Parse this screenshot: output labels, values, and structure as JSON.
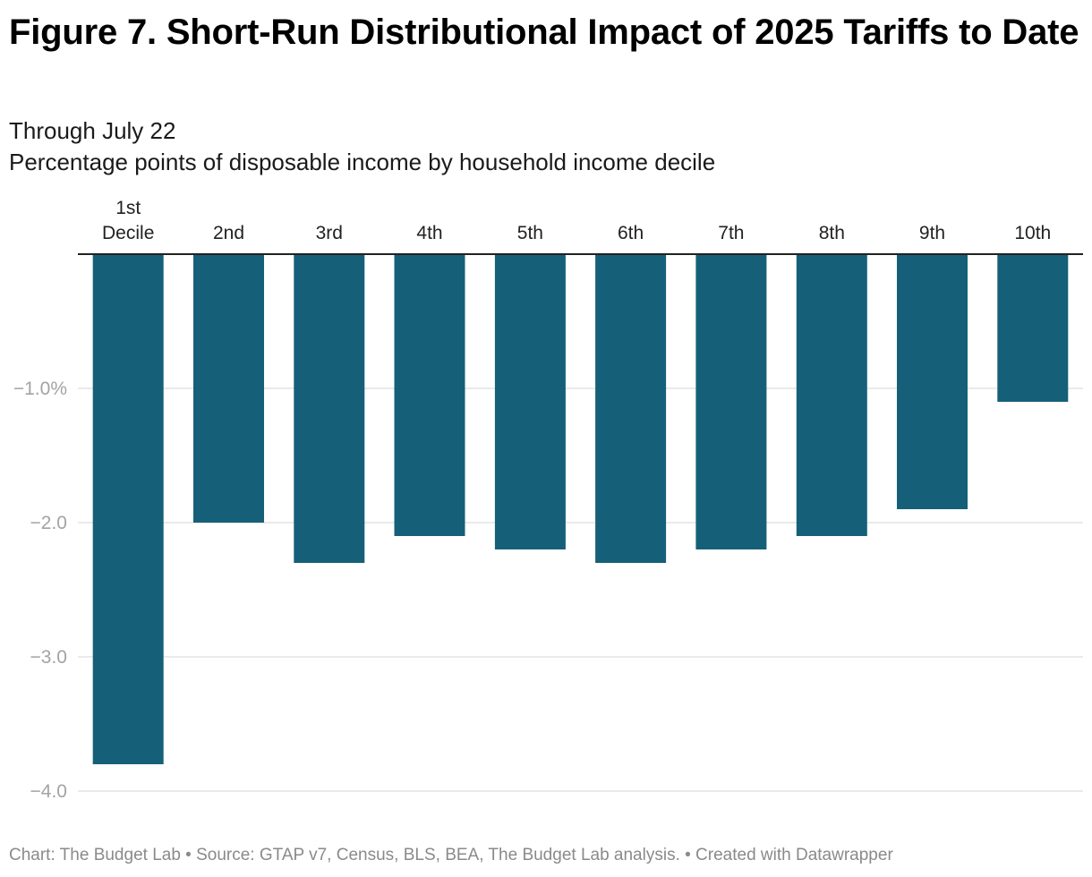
{
  "header": {
    "title": "Figure 7. Short-Run Distributional Impact of 2025 Tariffs to Date",
    "subtitle_line1": "Through July 22",
    "subtitle_line2": "Percentage points of disposable income by household income decile"
  },
  "footer": {
    "text": "Chart: The Budget Lab • Source: GTAP v7, Census, BLS, BEA, The Budget Lab analysis. • Created with Datawrapper"
  },
  "colors": {
    "bar": "#156078",
    "gridline": "#e3e3e3",
    "baseline": "#222222"
  },
  "chart_data": {
    "type": "bar",
    "orientation": "vertical",
    "categories": [
      [
        "1st",
        "Decile"
      ],
      [
        "2nd"
      ],
      [
        "3rd"
      ],
      [
        "4th"
      ],
      [
        "5th"
      ],
      [
        "6th"
      ],
      [
        "7th"
      ],
      [
        "8th"
      ],
      [
        "9th"
      ],
      [
        "10th"
      ]
    ],
    "values": [
      -3.8,
      -2.0,
      -2.3,
      -2.1,
      -2.2,
      -2.3,
      -2.2,
      -2.1,
      -1.9,
      -1.1
    ],
    "ylim": [
      -4.0,
      0
    ],
    "yticks": [
      {
        "value": -1.0,
        "label": "−1.0%"
      },
      {
        "value": -2.0,
        "label": "−2.0"
      },
      {
        "value": -3.0,
        "label": "−3.0"
      },
      {
        "value": -4.0,
        "label": "−4.0"
      }
    ],
    "category_labels_position": "top",
    "grid": true,
    "legend": "none"
  }
}
